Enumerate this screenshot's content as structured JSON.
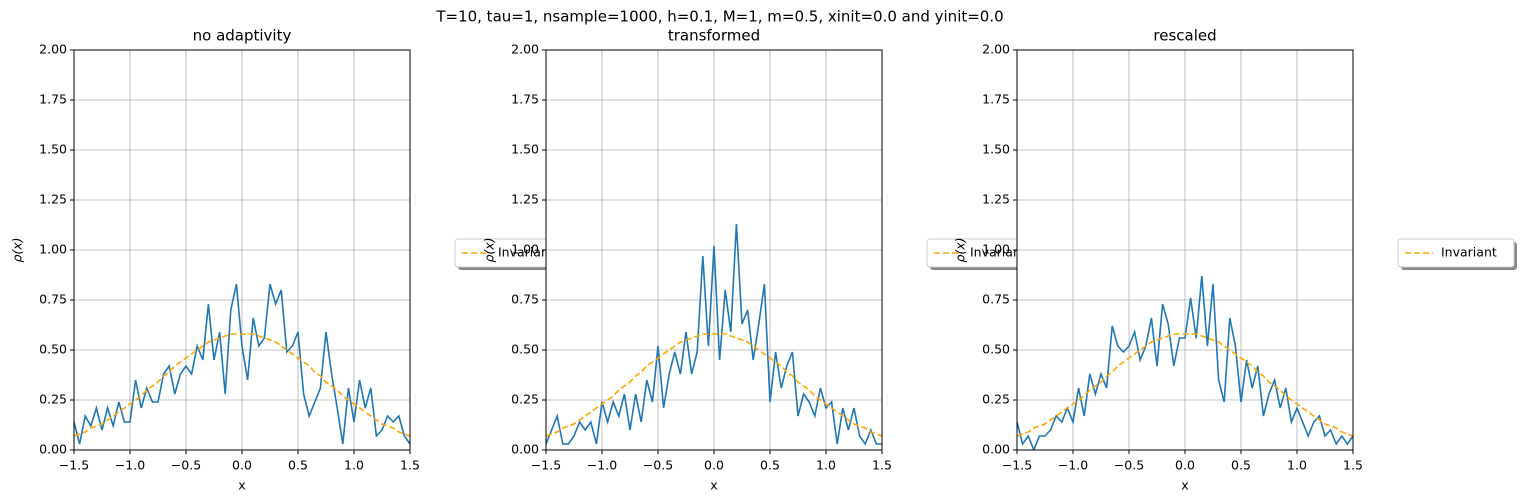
{
  "title": "T=10, tau=1, nsample=1000, h=0.1, M=1, m=0.5, xinit=0.0 and yinit=0.0",
  "chart_data": [
    {
      "type": "line",
      "title": "no adaptivity",
      "xlabel": "x",
      "ylabel": "ρ(x)",
      "grid": true,
      "legend": "outside-right",
      "xlim": [
        -1.5,
        1.5
      ],
      "ylim": [
        0,
        2
      ],
      "xticks": [
        {
          "value": -1.5,
          "label": "−1.5"
        },
        {
          "value": -1,
          "label": "−1.0"
        },
        {
          "value": -0.5,
          "label": "−0.5"
        },
        {
          "value": 0,
          "label": "0.0"
        },
        0.5,
        {
          "value": 1,
          "label": "1.0"
        },
        1.5
      ],
      "yticks": [
        {
          "value": 0,
          "label": "0.00"
        },
        0.25,
        {
          "value": 0.5,
          "label": "0.50"
        },
        0.75,
        {
          "value": 1,
          "label": "1.00"
        },
        1.25,
        {
          "value": 1.5,
          "label": "1.50"
        },
        1.75,
        {
          "value": 2,
          "label": "2.00"
        }
      ],
      "x": [
        -1.5,
        -1.45,
        -1.4,
        -1.35,
        -1.3,
        -1.25,
        -1.2,
        -1.15,
        -1.1,
        -1.05,
        -1,
        -0.95,
        -0.9,
        -0.85,
        -0.8,
        -0.75,
        -0.7,
        -0.65,
        -0.6,
        -0.55,
        -0.5,
        -0.45,
        -0.4,
        -0.35,
        -0.3,
        -0.25,
        -0.2,
        -0.15,
        -0.1,
        -0.05,
        0,
        0.05,
        0.1,
        0.15,
        0.2,
        0.25,
        0.3,
        0.35,
        0.4,
        0.45,
        0.5,
        0.55,
        0.6,
        0.65,
        0.7,
        0.75,
        0.8,
        0.85,
        0.9,
        0.95,
        1,
        1.05,
        1.1,
        1.15,
        1.2,
        1.25,
        1.3,
        1.35,
        1.4,
        1.45,
        1.5
      ],
      "series": [
        {
          "color": "#1f77b4",
          "values": [
            0.14,
            0.03,
            0.17,
            0.12,
            0.21,
            0.1,
            0.21,
            0.12,
            0.24,
            0.14,
            0.14,
            0.35,
            0.21,
            0.31,
            0.24,
            0.24,
            0.38,
            0.42,
            0.28,
            0.38,
            0.42,
            0.38,
            0.52,
            0.45,
            0.73,
            0.45,
            0.59,
            0.28,
            0.7,
            0.83,
            0.52,
            0.35,
            0.66,
            0.52,
            0.56,
            0.83,
            0.73,
            0.8,
            0.49,
            0.52,
            0.59,
            0.28,
            0.17,
            0.24,
            0.31,
            0.59,
            0.38,
            0.21,
            0.03,
            0.31,
            0.14,
            0.35,
            0.21,
            0.31,
            0.07,
            0.1,
            0.17,
            0.14,
            0.17,
            0.07,
            0.03
          ]
        },
        {
          "name": "Invariant",
          "color": "#ffa500",
          "dashed": true,
          "values": [
            0.07,
            0.08,
            0.09,
            0.11,
            0.12,
            0.13,
            0.15,
            0.17,
            0.19,
            0.21,
            0.23,
            0.25,
            0.27,
            0.3,
            0.32,
            0.34,
            0.37,
            0.39,
            0.42,
            0.44,
            0.46,
            0.48,
            0.5,
            0.52,
            0.54,
            0.55,
            0.56,
            0.57,
            0.58,
            0.58,
            0.58,
            0.58,
            0.58,
            0.57,
            0.56,
            0.55,
            0.54,
            0.52,
            0.5,
            0.48,
            0.46,
            0.44,
            0.42,
            0.39,
            0.37,
            0.34,
            0.32,
            0.3,
            0.27,
            0.25,
            0.23,
            0.21,
            0.19,
            0.17,
            0.15,
            0.13,
            0.12,
            0.11,
            0.09,
            0.08,
            0.07
          ]
        }
      ]
    },
    {
      "type": "line",
      "title": "transformed",
      "xlabel": "x",
      "ylabel": "ρ(x)",
      "grid": true,
      "legend": "outside-right",
      "xlim": [
        -1.5,
        1.5
      ],
      "ylim": [
        0,
        2
      ],
      "xticks": [
        {
          "value": -1.5,
          "label": "−1.5"
        },
        {
          "value": -1,
          "label": "−1.0"
        },
        {
          "value": -0.5,
          "label": "−0.5"
        },
        {
          "value": 0,
          "label": "0.0"
        },
        0.5,
        {
          "value": 1,
          "label": "1.0"
        },
        1.5
      ],
      "yticks": [
        {
          "value": 0,
          "label": "0.00"
        },
        0.25,
        {
          "value": 0.5,
          "label": "0.50"
        },
        0.75,
        {
          "value": 1,
          "label": "1.00"
        },
        1.25,
        {
          "value": 1.5,
          "label": "1.50"
        },
        1.75,
        {
          "value": 2,
          "label": "2.00"
        }
      ],
      "x": [
        -1.5,
        -1.45,
        -1.4,
        -1.35,
        -1.3,
        -1.25,
        -1.2,
        -1.15,
        -1.1,
        -1.05,
        -1,
        -0.95,
        -0.9,
        -0.85,
        -0.8,
        -0.75,
        -0.7,
        -0.65,
        -0.6,
        -0.55,
        -0.5,
        -0.45,
        -0.4,
        -0.35,
        -0.3,
        -0.25,
        -0.2,
        -0.15,
        -0.1,
        -0.05,
        0,
        0.05,
        0.1,
        0.15,
        0.2,
        0.25,
        0.3,
        0.35,
        0.4,
        0.45,
        0.5,
        0.55,
        0.6,
        0.65,
        0.7,
        0.75,
        0.8,
        0.85,
        0.9,
        0.95,
        1,
        1.05,
        1.1,
        1.15,
        1.2,
        1.25,
        1.3,
        1.35,
        1.4,
        1.45,
        1.5
      ],
      "series": [
        {
          "color": "#1f77b4",
          "values": [
            0.03,
            0.1,
            0.17,
            0.03,
            0.03,
            0.07,
            0.14,
            0.1,
            0.14,
            0.03,
            0.24,
            0.14,
            0.24,
            0.17,
            0.28,
            0.1,
            0.28,
            0.14,
            0.35,
            0.24,
            0.52,
            0.21,
            0.38,
            0.49,
            0.38,
            0.59,
            0.38,
            0.49,
            0.97,
            0.52,
            1.02,
            0.45,
            0.8,
            0.59,
            1.13,
            0.63,
            0.7,
            0.45,
            0.63,
            0.83,
            0.24,
            0.49,
            0.31,
            0.42,
            0.49,
            0.17,
            0.28,
            0.24,
            0.17,
            0.31,
            0.21,
            0.24,
            0.03,
            0.21,
            0.1,
            0.21,
            0.07,
            0.03,
            0.1,
            0.03,
            0.03
          ]
        },
        {
          "name": "Invariant",
          "color": "#ffa500",
          "dashed": true,
          "values": [
            0.07,
            0.08,
            0.09,
            0.11,
            0.12,
            0.13,
            0.15,
            0.17,
            0.19,
            0.21,
            0.23,
            0.25,
            0.27,
            0.3,
            0.32,
            0.34,
            0.37,
            0.39,
            0.42,
            0.44,
            0.46,
            0.48,
            0.5,
            0.52,
            0.54,
            0.55,
            0.56,
            0.57,
            0.58,
            0.58,
            0.58,
            0.58,
            0.58,
            0.57,
            0.56,
            0.55,
            0.54,
            0.52,
            0.5,
            0.48,
            0.46,
            0.44,
            0.42,
            0.39,
            0.37,
            0.34,
            0.32,
            0.3,
            0.27,
            0.25,
            0.23,
            0.21,
            0.19,
            0.17,
            0.15,
            0.13,
            0.12,
            0.11,
            0.09,
            0.08,
            0.07
          ]
        }
      ]
    },
    {
      "type": "line",
      "title": "rescaled",
      "xlabel": "x",
      "ylabel": "ρ(x)",
      "grid": true,
      "legend": "outside-right",
      "xlim": [
        -1.5,
        1.5
      ],
      "ylim": [
        0,
        2
      ],
      "xticks": [
        {
          "value": -1.5,
          "label": "−1.5"
        },
        {
          "value": -1,
          "label": "−1.0"
        },
        {
          "value": -0.5,
          "label": "−0.5"
        },
        {
          "value": 0,
          "label": "0.0"
        },
        0.5,
        {
          "value": 1,
          "label": "1.0"
        },
        1.5
      ],
      "yticks": [
        {
          "value": 0,
          "label": "0.00"
        },
        0.25,
        {
          "value": 0.5,
          "label": "0.50"
        },
        0.75,
        {
          "value": 1,
          "label": "1.00"
        },
        1.25,
        {
          "value": 1.5,
          "label": "1.50"
        },
        1.75,
        {
          "value": 2,
          "label": "2.00"
        }
      ],
      "x": [
        -1.5,
        -1.45,
        -1.4,
        -1.35,
        -1.3,
        -1.25,
        -1.2,
        -1.15,
        -1.1,
        -1.05,
        -1,
        -0.95,
        -0.9,
        -0.85,
        -0.8,
        -0.75,
        -0.7,
        -0.65,
        -0.6,
        -0.55,
        -0.5,
        -0.45,
        -0.4,
        -0.35,
        -0.3,
        -0.25,
        -0.2,
        -0.15,
        -0.1,
        -0.05,
        0,
        0.05,
        0.1,
        0.15,
        0.2,
        0.25,
        0.3,
        0.35,
        0.4,
        0.45,
        0.5,
        0.55,
        0.6,
        0.65,
        0.7,
        0.75,
        0.8,
        0.85,
        0.9,
        0.95,
        1,
        1.05,
        1.1,
        1.15,
        1.2,
        1.25,
        1.3,
        1.35,
        1.4,
        1.45,
        1.5
      ],
      "series": [
        {
          "color": "#1f77b4",
          "values": [
            0.14,
            0.03,
            0.07,
            0,
            0.07,
            0.07,
            0.1,
            0.17,
            0.14,
            0.21,
            0.14,
            0.31,
            0.17,
            0.38,
            0.28,
            0.38,
            0.31,
            0.62,
            0.52,
            0.49,
            0.52,
            0.59,
            0.45,
            0.52,
            0.66,
            0.42,
            0.73,
            0.63,
            0.42,
            0.56,
            0.56,
            0.76,
            0.56,
            0.87,
            0.52,
            0.83,
            0.35,
            0.24,
            0.66,
            0.52,
            0.24,
            0.45,
            0.31,
            0.42,
            0.17,
            0.28,
            0.35,
            0.21,
            0.31,
            0.14,
            0.21,
            0.14,
            0.07,
            0.14,
            0.17,
            0.07,
            0.1,
            0.03,
            0.07,
            0.03,
            0.07
          ]
        },
        {
          "name": "Invariant",
          "color": "#ffa500",
          "dashed": true,
          "values": [
            0.07,
            0.08,
            0.09,
            0.11,
            0.12,
            0.13,
            0.15,
            0.17,
            0.19,
            0.21,
            0.23,
            0.25,
            0.27,
            0.3,
            0.32,
            0.34,
            0.37,
            0.39,
            0.42,
            0.44,
            0.46,
            0.48,
            0.5,
            0.52,
            0.54,
            0.55,
            0.56,
            0.57,
            0.58,
            0.58,
            0.58,
            0.58,
            0.58,
            0.57,
            0.56,
            0.55,
            0.54,
            0.52,
            0.5,
            0.48,
            0.46,
            0.44,
            0.42,
            0.39,
            0.37,
            0.34,
            0.32,
            0.3,
            0.27,
            0.25,
            0.23,
            0.21,
            0.19,
            0.17,
            0.15,
            0.13,
            0.12,
            0.11,
            0.09,
            0.08,
            0.07
          ]
        }
      ]
    }
  ]
}
